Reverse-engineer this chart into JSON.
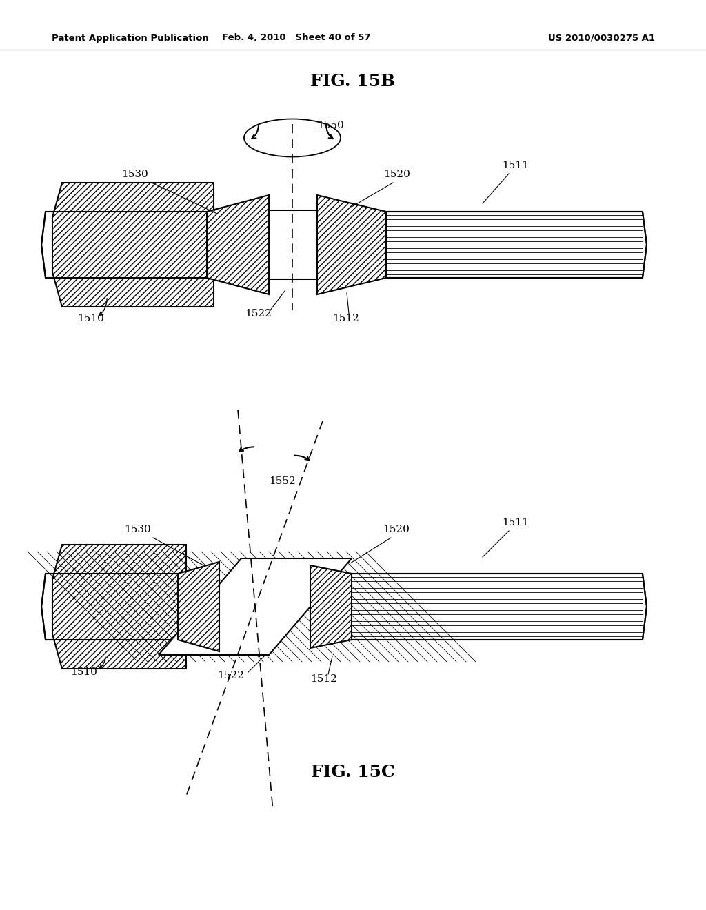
{
  "bg_color": "#ffffff",
  "header_left": "Patent Application Publication",
  "header_mid": "Feb. 4, 2010   Sheet 40 of 57",
  "header_right": "US 2010/0030275 A1",
  "fig_title_B": "FIG. 15B",
  "fig_title_C": "FIG. 15C",
  "line_color": "#000000",
  "hatch_color": "#000000"
}
